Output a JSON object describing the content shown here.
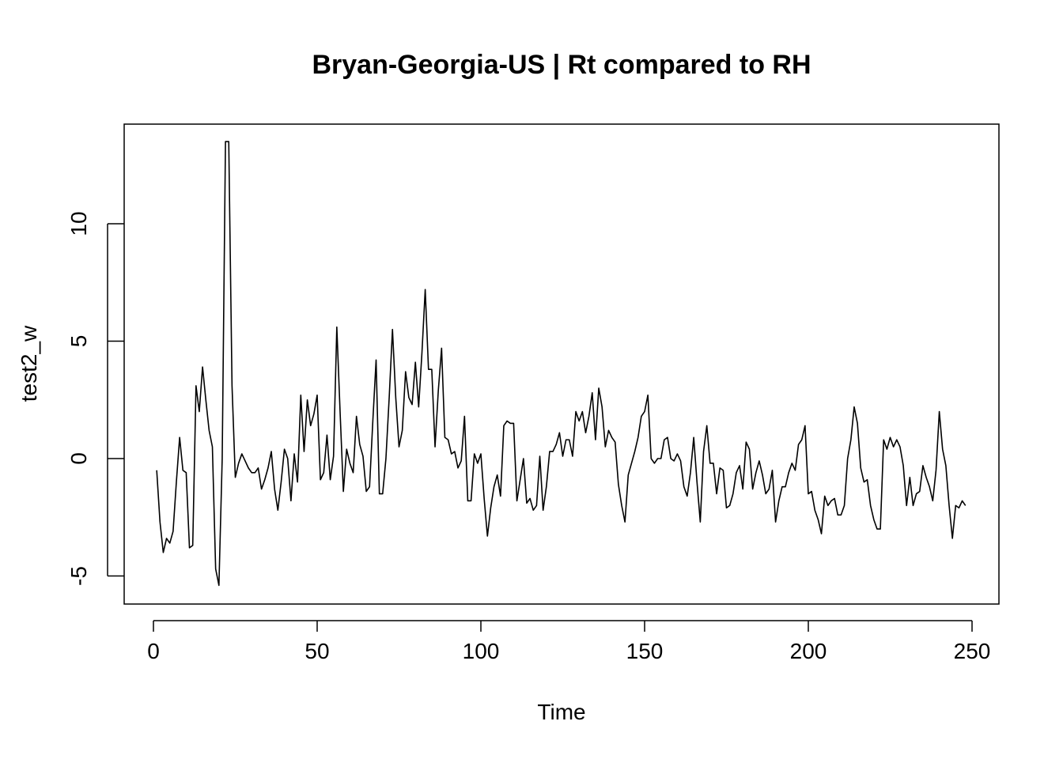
{
  "chart_data": {
    "type": "line",
    "title": "Bryan-Georgia-US | Rt compared to RH",
    "xlabel": "Time",
    "ylabel": "test2_w",
    "xlim": [
      0,
      250
    ],
    "ylim": [
      -5,
      10
    ],
    "xticks": [
      0,
      50,
      100,
      150,
      200,
      250
    ],
    "yticks": [
      -5,
      0,
      5,
      10
    ],
    "grid": false,
    "series": [
      {
        "values": [
          -0.5,
          -2.7,
          -4.0,
          -3.4,
          -3.6,
          -3.1,
          -1.0,
          0.9,
          -0.5,
          -0.6,
          -3.8,
          -3.7,
          3.1,
          2.0,
          3.9,
          2.5,
          1.2,
          0.5,
          -4.7,
          -5.4,
          0.0,
          13.5,
          13.5,
          3.1,
          -0.8,
          -0.2,
          0.2,
          -0.1,
          -0.4,
          -0.6,
          -0.6,
          -0.4,
          -1.3,
          -0.9,
          -0.4,
          0.3,
          -1.3,
          -2.2,
          -1.0,
          0.4,
          0.0,
          -1.8,
          0.2,
          -1.0,
          2.7,
          0.3,
          2.5,
          1.4,
          1.9,
          2.7,
          -0.9,
          -0.6,
          1.0,
          -0.9,
          0.1,
          5.6,
          2.0,
          -1.4,
          0.4,
          -0.2,
          -0.6,
          1.8,
          0.6,
          0.1,
          -1.4,
          -1.2,
          1.6,
          4.2,
          -1.5,
          -1.5,
          0.0,
          2.6,
          5.5,
          2.6,
          0.5,
          1.2,
          3.7,
          2.6,
          2.3,
          4.1,
          2.2,
          4.5,
          7.2,
          3.8,
          3.8,
          0.5,
          2.9,
          4.7,
          0.9,
          0.8,
          0.2,
          0.3,
          -0.4,
          -0.1,
          1.8,
          -1.8,
          -1.8,
          0.2,
          -0.2,
          0.2,
          -1.7,
          -3.3,
          -2.1,
          -1.2,
          -0.7,
          -1.6,
          1.4,
          1.6,
          1.5,
          1.5,
          -1.8,
          -0.9,
          0.0,
          -1.9,
          -1.7,
          -2.2,
          -2.0,
          0.1,
          -2.2,
          -1.2,
          0.3,
          0.3,
          0.6,
          1.1,
          0.1,
          0.8,
          0.8,
          0.1,
          2.0,
          1.6,
          2.0,
          1.1,
          1.8,
          2.8,
          0.8,
          3.0,
          2.2,
          0.5,
          1.2,
          0.9,
          0.7,
          -1.1,
          -2.0,
          -2.7,
          -0.7,
          -0.2,
          0.3,
          0.9,
          1.8,
          2.0,
          2.7,
          0.0,
          -0.2,
          0.0,
          0.0,
          0.8,
          0.9,
          0.0,
          -0.1,
          0.2,
          -0.1,
          -1.2,
          -1.6,
          -0.6,
          0.9,
          -1.0,
          -2.7,
          0.3,
          1.4,
          -0.2,
          -0.2,
          -1.5,
          -0.4,
          -0.5,
          -2.1,
          -2.0,
          -1.5,
          -0.6,
          -0.3,
          -1.3,
          0.7,
          0.4,
          -1.3,
          -0.6,
          -0.1,
          -0.7,
          -1.5,
          -1.3,
          -0.5,
          -2.7,
          -1.8,
          -1.2,
          -1.2,
          -0.6,
          -0.2,
          -0.5,
          0.6,
          0.8,
          1.4,
          -1.5,
          -1.4,
          -2.2,
          -2.6,
          -3.2,
          -1.6,
          -2.0,
          -1.8,
          -1.7,
          -2.4,
          -2.4,
          -2.0,
          0.0,
          0.8,
          2.2,
          1.5,
          -0.4,
          -1.0,
          -0.9,
          -2.0,
          -2.6,
          -3.0,
          -3.0,
          0.8,
          0.4,
          0.9,
          0.5,
          0.8,
          0.5,
          -0.3,
          -2.0,
          -0.8,
          -2.0,
          -1.5,
          -1.4,
          -0.3,
          -0.8,
          -1.2,
          -1.8,
          -0.5,
          2.0,
          0.4,
          -0.3,
          -2.0,
          -3.4,
          -2.0,
          -2.1,
          -1.8,
          -2.0
        ]
      }
    ]
  }
}
